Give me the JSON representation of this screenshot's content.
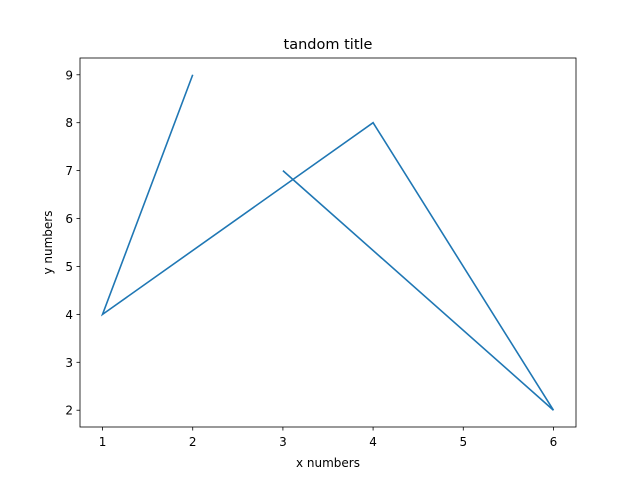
{
  "chart_data": {
    "type": "line",
    "title": "tandom title",
    "xlabel": "x numbers",
    "ylabel": "y numbers",
    "xlim": [
      0.75,
      6.25
    ],
    "ylim": [
      1.65,
      9.35
    ],
    "xticks": [
      1,
      2,
      3,
      4,
      5,
      6
    ],
    "yticks": [
      2,
      3,
      4,
      5,
      6,
      7,
      8,
      9
    ],
    "grid": false,
    "series": [
      {
        "color": "#1f77b4",
        "points": [
          {
            "x": 2,
            "y": 9
          },
          {
            "x": 1,
            "y": 4
          },
          {
            "x": 4,
            "y": 8
          },
          {
            "x": 6,
            "y": 2
          },
          {
            "x": 3,
            "y": 7
          }
        ]
      }
    ]
  }
}
